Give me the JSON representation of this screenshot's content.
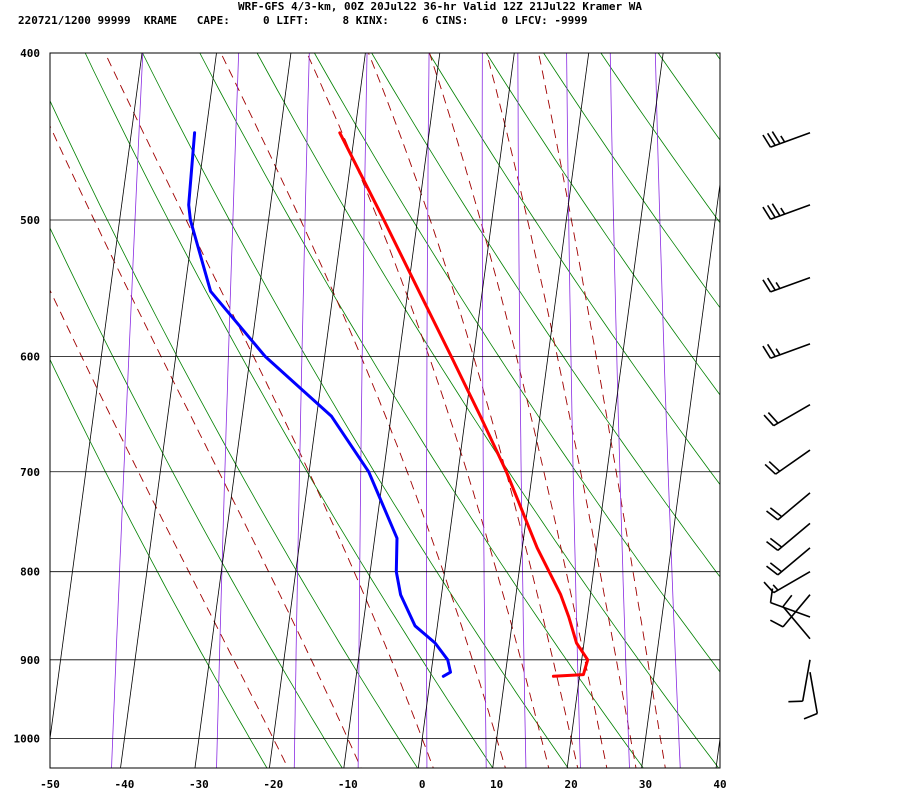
{
  "header": {
    "title": "WRF-GFS 4/3-km, 00Z 20Jul22 36-hr Valid 12Z 21Jul22 Kramer WA",
    "info": "220721/1200 99999  KRAME   CAPE:     0 LIFT:     8 KINX:     6 CINS:     0 LFCV: -9999"
  },
  "chart_data": {
    "type": "line",
    "title": "WRF-GFS 4/3-km, 00Z 20Jul22 36-hr Valid 12Z 21Jul22 Kramer WA",
    "xlabel": "",
    "ylabel": "",
    "x_axis": {
      "ticks": [
        -50,
        -40,
        -30,
        -20,
        -10,
        0,
        10,
        20,
        30,
        40
      ],
      "range": [
        -50,
        40
      ]
    },
    "y_axis": {
      "scale": "log",
      "ticks": [
        400,
        500,
        600,
        700,
        800,
        900,
        1000
      ],
      "range": [
        400,
        1040
      ]
    },
    "skew": 1,
    "grid": true,
    "series": [
      {
        "role": "temperature",
        "color": "#ff0000",
        "points": [
          {
            "p": 920,
            "t": 16.5
          },
          {
            "p": 918,
            "t": 20.5
          },
          {
            "p": 900,
            "t": 20.8
          },
          {
            "p": 880,
            "t": 19.0
          },
          {
            "p": 850,
            "t": 17.5
          },
          {
            "p": 825,
            "t": 16.0
          },
          {
            "p": 775,
            "t": 12.0
          },
          {
            "p": 700,
            "t": 6.5
          },
          {
            "p": 650,
            "t": 2.0
          },
          {
            "p": 600,
            "t": -3.0
          },
          {
            "p": 550,
            "t": -8.5
          },
          {
            "p": 500,
            "t": -14.5
          },
          {
            "p": 445,
            "t": -22.0
          }
        ]
      },
      {
        "role": "dewpoint",
        "color": "#0000ff",
        "points": [
          {
            "p": 920,
            "t": 1.7
          },
          {
            "p": 915,
            "t": 2.6
          },
          {
            "p": 900,
            "t": 2.0
          },
          {
            "p": 880,
            "t": 0.0
          },
          {
            "p": 860,
            "t": -3.0
          },
          {
            "p": 825,
            "t": -5.5
          },
          {
            "p": 800,
            "t": -6.5
          },
          {
            "p": 765,
            "t": -7.0
          },
          {
            "p": 700,
            "t": -12.0
          },
          {
            "p": 650,
            "t": -18.0
          },
          {
            "p": 600,
            "t": -28.0
          },
          {
            "p": 550,
            "t": -36.5
          },
          {
            "p": 500,
            "t": -40.5
          },
          {
            "p": 490,
            "t": -41.0
          },
          {
            "p": 445,
            "t": -41.5
          }
        ]
      }
    ],
    "wind_barbs": [
      {
        "p": 445,
        "direction": 250,
        "speed": 35
      },
      {
        "p": 490,
        "direction": 250,
        "speed": 35
      },
      {
        "p": 540,
        "direction": 250,
        "speed": 25
      },
      {
        "p": 590,
        "direction": 250,
        "speed": 25
      },
      {
        "p": 640,
        "direction": 240,
        "speed": 20
      },
      {
        "p": 680,
        "direction": 235,
        "speed": 20
      },
      {
        "p": 720,
        "direction": 230,
        "speed": 20
      },
      {
        "p": 750,
        "direction": 230,
        "speed": 20
      },
      {
        "p": 775,
        "direction": 230,
        "speed": 20
      },
      {
        "p": 800,
        "direction": 240,
        "speed": 15
      },
      {
        "p": 825,
        "direction": 220,
        "speed": 10
      },
      {
        "p": 850,
        "direction": 290,
        "speed": 10
      },
      {
        "p": 875,
        "direction": 320,
        "speed": 10
      },
      {
        "p": 900,
        "direction": 190,
        "speed": 10
      },
      {
        "p": 915,
        "direction": 170,
        "speed": 10
      }
    ],
    "background_lines": {
      "dry_adiabats_theta_K": [
        250,
        260,
        270,
        280,
        290,
        300,
        310,
        320,
        330,
        340,
        350,
        360,
        370,
        380,
        390,
        400,
        410,
        420
      ],
      "moist_adiabats_C": [
        -20,
        -10,
        0,
        10,
        16,
        20,
        24,
        28,
        32
      ],
      "mixing_ratio_gkg": [
        0.1,
        0.4,
        1,
        2,
        4,
        7,
        10,
        16,
        24,
        36
      ]
    }
  }
}
